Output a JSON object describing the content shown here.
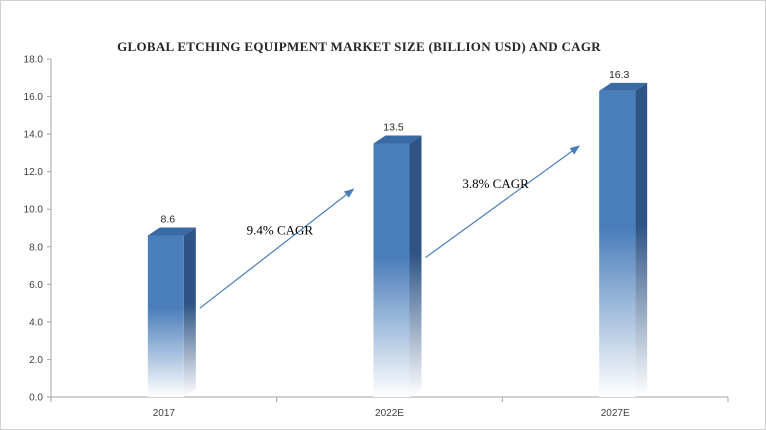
{
  "chart_data": {
    "type": "bar",
    "title": "GLOBAL ETCHING EQUIPMENT MARKET SIZE (BILLION USD) AND CAGR",
    "xlabel": "",
    "ylabel": "",
    "categories": [
      "2017",
      "2022E",
      "2027E"
    ],
    "values": [
      8.6,
      13.5,
      16.3
    ],
    "data_labels": [
      "8.6",
      "13.5",
      "16.3"
    ],
    "ylim": [
      0,
      18
    ],
    "yticks": [
      "0.0",
      "2.0",
      "4.0",
      "6.0",
      "8.0",
      "10.0",
      "12.0",
      "14.0",
      "16.0",
      "18.0"
    ],
    "grid": false,
    "legend": "none",
    "bar_style": "3d-gradient",
    "annotations": [
      {
        "text": "9.4% CAGR",
        "from": "2017",
        "to": "2022E"
      },
      {
        "text": "3.8% CAGR",
        "from": "2022E",
        "to": "2027E"
      }
    ],
    "colors": {
      "bar_front": "#4a7ebb",
      "bar_side": "#2e5485",
      "bar_top": "#3a6aa3",
      "arrow": "#4a7ebb",
      "axis": "#a6a6a6"
    }
  }
}
